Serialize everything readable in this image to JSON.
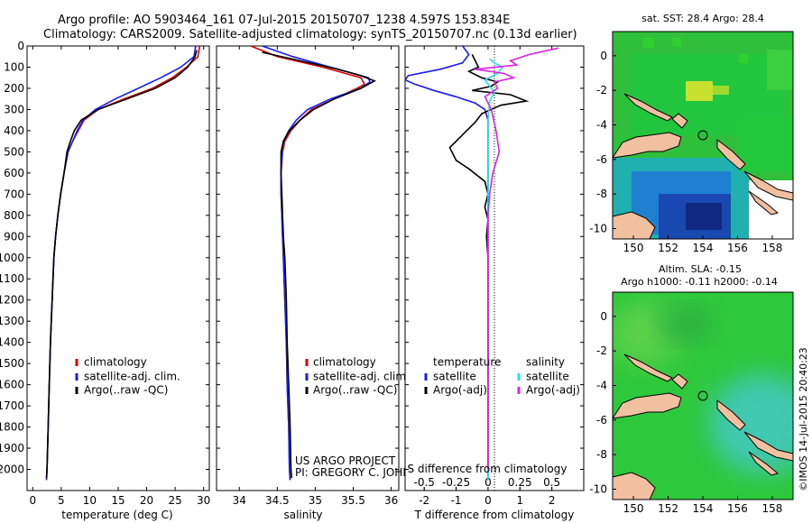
{
  "header": {
    "line1": "Argo profile: AO 5903464_161 07-Jul-2015 20150707_1238 4.597S 153.834E",
    "line2": "Climatology: CARS2009. Satellite-adjusted climatology: synTS_20150707.nc (0.13d earlier)"
  },
  "colors": {
    "climatology": "#e00000",
    "satellite": "#1a1aff",
    "argo": "#000000",
    "satellite_s": "#22e0f0",
    "argo_s": "#e020e0"
  },
  "project": {
    "line1": "US ARGO PROJECT",
    "line2": "PI: GREGORY C. JOHNSON"
  },
  "credit": "©IMOS 14-Jul-2015 20:40:23",
  "chart_data": [
    {
      "type": "line",
      "name": "temperature",
      "xlabel": "temperature (deg C)",
      "xlim": [
        -1,
        31
      ],
      "ylim": [
        2100,
        0
      ],
      "xticks": [
        0,
        5,
        10,
        15,
        20,
        25,
        30
      ],
      "yticks": [
        0,
        100,
        200,
        300,
        400,
        500,
        600,
        700,
        800,
        900,
        1000,
        1100,
        1200,
        1300,
        1400,
        1500,
        1600,
        1700,
        1800,
        1900,
        2000
      ],
      "legend": [
        "climatology",
        "satellite-adj. clim.",
        "Argo(..raw -QC)"
      ],
      "series": [
        {
          "name": "climatology",
          "color": "#e00000",
          "points": [
            [
              29.3,
              0
            ],
            [
              29,
              50
            ],
            [
              27,
              100
            ],
            [
              24.5,
              150
            ],
            [
              21,
              200
            ],
            [
              16,
              250
            ],
            [
              11.5,
              300
            ],
            [
              9,
              350
            ],
            [
              8,
              400
            ],
            [
              7,
              450
            ],
            [
              6.2,
              500
            ],
            [
              5.5,
              600
            ],
            [
              4.9,
              700
            ],
            [
              4.4,
              800
            ],
            [
              4,
              900
            ],
            [
              3.7,
              1000
            ],
            [
              3.4,
              1200
            ],
            [
              3.1,
              1400
            ],
            [
              2.9,
              1600
            ],
            [
              2.7,
              1800
            ],
            [
              2.5,
              2000
            ],
            [
              2.4,
              2050
            ]
          ]
        },
        {
          "name": "satellite",
          "color": "#1a1aff",
          "points": [
            [
              28.6,
              0
            ],
            [
              28.3,
              50
            ],
            [
              26,
              100
            ],
            [
              22.5,
              150
            ],
            [
              18.5,
              200
            ],
            [
              14.5,
              250
            ],
            [
              11,
              300
            ],
            [
              8.8,
              350
            ],
            [
              7.8,
              400
            ],
            [
              7,
              450
            ],
            [
              6.2,
              500
            ],
            [
              5.5,
              600
            ],
            [
              4.9,
              700
            ],
            [
              4.4,
              800
            ],
            [
              4,
              900
            ],
            [
              3.7,
              1000
            ],
            [
              3.4,
              1200
            ],
            [
              3.1,
              1400
            ],
            [
              2.9,
              1600
            ],
            [
              2.7,
              1800
            ],
            [
              2.5,
              2000
            ],
            [
              2.4,
              2050
            ]
          ]
        },
        {
          "name": "argo",
          "color": "#000000",
          "points": [
            [
              28.8,
              20
            ],
            [
              28.5,
              50
            ],
            [
              27.2,
              100
            ],
            [
              25,
              150
            ],
            [
              21.5,
              200
            ],
            [
              16.5,
              250
            ],
            [
              11.5,
              300
            ],
            [
              8.5,
              350
            ],
            [
              7.3,
              400
            ],
            [
              6.6,
              450
            ],
            [
              6,
              500
            ],
            [
              5.5,
              600
            ],
            [
              4.9,
              700
            ],
            [
              4.4,
              800
            ],
            [
              4,
              900
            ],
            [
              3.7,
              1000
            ],
            [
              3.4,
              1200
            ],
            [
              3.1,
              1400
            ],
            [
              2.9,
              1600
            ],
            [
              2.7,
              1800
            ],
            [
              2.5,
              2000
            ],
            [
              2.4,
              2040
            ]
          ]
        }
      ]
    },
    {
      "type": "line",
      "name": "salinity",
      "xlabel": "salinity",
      "xlim": [
        33.7,
        36.1
      ],
      "ylim": [
        2100,
        0
      ],
      "xticks": [
        34,
        34.5,
        35,
        35.5,
        36
      ],
      "xticklabels": [
        "34",
        "34.5",
        "35",
        "35.5",
        "36"
      ],
      "legend": [
        "climatology",
        "satellite-adj. clim.",
        "Argo(..raw -QC)"
      ],
      "series": [
        {
          "name": "climatology",
          "color": "#e00000",
          "points": [
            [
              34.15,
              0
            ],
            [
              34.5,
              50
            ],
            [
              35.1,
              100
            ],
            [
              35.6,
              150
            ],
            [
              35.65,
              180
            ],
            [
              35.55,
              200
            ],
            [
              35.25,
              250
            ],
            [
              34.95,
              300
            ],
            [
              34.8,
              350
            ],
            [
              34.68,
              400
            ],
            [
              34.6,
              450
            ],
            [
              34.57,
              500
            ],
            [
              34.55,
              600
            ],
            [
              34.55,
              700
            ],
            [
              34.56,
              800
            ],
            [
              34.57,
              900
            ],
            [
              34.58,
              1000
            ],
            [
              34.6,
              1200
            ],
            [
              34.62,
              1400
            ],
            [
              34.63,
              1600
            ],
            [
              34.65,
              1800
            ],
            [
              34.66,
              2000
            ],
            [
              34.67,
              2050
            ]
          ]
        },
        {
          "name": "satellite",
          "color": "#1a1aff",
          "points": [
            [
              34.3,
              0
            ],
            [
              34.7,
              50
            ],
            [
              35.2,
              100
            ],
            [
              35.7,
              150
            ],
            [
              35.72,
              170
            ],
            [
              35.6,
              200
            ],
            [
              35.2,
              250
            ],
            [
              34.9,
              300
            ],
            [
              34.75,
              350
            ],
            [
              34.65,
              400
            ],
            [
              34.58,
              450
            ],
            [
              34.56,
              500
            ],
            [
              34.55,
              600
            ],
            [
              34.55,
              700
            ],
            [
              34.56,
              800
            ],
            [
              34.57,
              900
            ],
            [
              34.58,
              1000
            ],
            [
              34.6,
              1200
            ],
            [
              34.62,
              1400
            ],
            [
              34.63,
              1600
            ],
            [
              34.65,
              1800
            ],
            [
              34.66,
              2000
            ],
            [
              34.67,
              2050
            ]
          ]
        },
        {
          "name": "argo",
          "color": "#000000",
          "points": [
            [
              34.3,
              30
            ],
            [
              34.8,
              70
            ],
            [
              35.3,
              110
            ],
            [
              35.6,
              140
            ],
            [
              35.78,
              165
            ],
            [
              35.6,
              200
            ],
            [
              35.25,
              250
            ],
            [
              34.98,
              300
            ],
            [
              34.8,
              350
            ],
            [
              34.66,
              400
            ],
            [
              34.58,
              450
            ],
            [
              34.55,
              500
            ],
            [
              34.55,
              600
            ],
            [
              34.56,
              700
            ],
            [
              34.57,
              800
            ],
            [
              34.58,
              900
            ],
            [
              34.6,
              1000
            ],
            [
              34.62,
              1200
            ],
            [
              34.63,
              1400
            ],
            [
              34.65,
              1600
            ],
            [
              34.67,
              1800
            ],
            [
              34.68,
              2000
            ],
            [
              34.69,
              2040
            ]
          ]
        }
      ]
    },
    {
      "type": "line",
      "name": "difference",
      "xlabel": "T difference from climatology",
      "xlabel_top": "S difference from climatology",
      "xlim": [
        -2.6,
        3.0
      ],
      "ylim": [
        2100,
        0
      ],
      "xticks": [
        -2,
        -1,
        0,
        1,
        2
      ],
      "xticklabels": [
        "-2",
        "-1",
        "0",
        "1",
        "2"
      ],
      "sticks": [
        -0.5,
        -0.25,
        0,
        0.25,
        0.5
      ],
      "sticklabels": [
        "-0.5",
        "-0.25",
        "0",
        "0.25",
        "0.5"
      ],
      "legend_t": [
        "temperature",
        "satellite",
        "Argo(-adj)"
      ],
      "legend_s": [
        "salinity",
        "satellite",
        "Argo(-adj)"
      ],
      "series": [
        {
          "name": "T satellite",
          "color": "#1a1aff",
          "points": [
            [
              -0.8,
              0
            ],
            [
              -0.6,
              40
            ],
            [
              -0.8,
              80
            ],
            [
              -1.5,
              110
            ],
            [
              -2.5,
              140
            ],
            [
              -2.6,
              160
            ],
            [
              -2.3,
              180
            ],
            [
              -1.7,
              210
            ],
            [
              -1,
              240
            ],
            [
              -0.4,
              270
            ],
            [
              -0.1,
              300
            ],
            [
              0,
              350
            ],
            [
              0,
              2050
            ]
          ]
        },
        {
          "name": "T argo",
          "color": "#000000",
          "points": [
            [
              -0.5,
              40
            ],
            [
              -0.3,
              100
            ],
            [
              -0.6,
              120
            ],
            [
              -0.2,
              150
            ],
            [
              0.3,
              170
            ],
            [
              0.1,
              190
            ],
            [
              -0.5,
              210
            ],
            [
              0.7,
              230
            ],
            [
              1.2,
              260
            ],
            [
              0.4,
              280
            ],
            [
              -0.2,
              320
            ],
            [
              -0.4,
              360
            ],
            [
              -0.8,
              420
            ],
            [
              -1.2,
              480
            ],
            [
              -1,
              540
            ],
            [
              -0.6,
              580
            ],
            [
              -0.1,
              640
            ],
            [
              0,
              700
            ],
            [
              -0.1,
              760
            ],
            [
              0,
              820
            ],
            [
              -0.05,
              900
            ],
            [
              0,
              1000
            ],
            [
              0,
              1100
            ],
            [
              0,
              1200
            ],
            [
              0,
              1300
            ],
            [
              0,
              1400
            ],
            [
              0,
              1500
            ],
            [
              0,
              1600
            ],
            [
              0,
              1700
            ],
            [
              0,
              1800
            ],
            [
              0,
              1900
            ],
            [
              0,
              2000
            ]
          ]
        },
        {
          "name": "S satellite",
          "color": "#22e0f0",
          "points": [
            [
              0.05,
              60
            ],
            [
              0.2,
              80
            ],
            [
              0.45,
              100
            ],
            [
              0.3,
              130
            ],
            [
              -0.1,
              160
            ],
            [
              0.05,
              190
            ],
            [
              0.2,
              220
            ],
            [
              0.05,
              260
            ],
            [
              0,
              350
            ],
            [
              0,
              2050
            ]
          ]
        },
        {
          "name": "S argo",
          "color": "#e020e0",
          "points": [
            [
              2.2,
              10
            ],
            [
              1.3,
              40
            ],
            [
              0.7,
              70
            ],
            [
              0.9,
              90
            ],
            [
              -0.4,
              110
            ],
            [
              0.5,
              130
            ],
            [
              0.8,
              150
            ],
            [
              0.2,
              170
            ],
            [
              0.3,
              200
            ],
            [
              -0.1,
              240
            ],
            [
              0.1,
              300
            ],
            [
              0.25,
              400
            ],
            [
              0.35,
              500
            ],
            [
              0.15,
              600
            ],
            [
              0.05,
              700
            ],
            [
              0,
              800
            ],
            [
              0,
              2000
            ]
          ]
        }
      ]
    },
    {
      "type": "heatmap",
      "name": "sst-map",
      "title": "sat. SST: 28.4  Argo: 28.4",
      "xticks": [
        150,
        152,
        154,
        156,
        158
      ],
      "yticks": [
        0,
        -2,
        -4,
        -6,
        -8,
        -10
      ],
      "xlim": [
        148.8,
        159.2
      ],
      "ylim": [
        -10.6,
        1.4
      ],
      "argo_position": [
        153.834,
        -4.597
      ]
    },
    {
      "type": "heatmap",
      "name": "sla-map",
      "title_line1": "Altim. SLA: -0.15",
      "title_line2": "Argo h1000: -0.11  h2000: -0.14",
      "xticks": [
        150,
        152,
        154,
        156,
        158
      ],
      "yticks": [
        0,
        -2,
        -4,
        -6,
        -8,
        -10
      ],
      "xlim": [
        148.8,
        159.2
      ],
      "ylim": [
        -10.6,
        1.4
      ],
      "argo_position": [
        153.834,
        -4.597
      ]
    }
  ]
}
